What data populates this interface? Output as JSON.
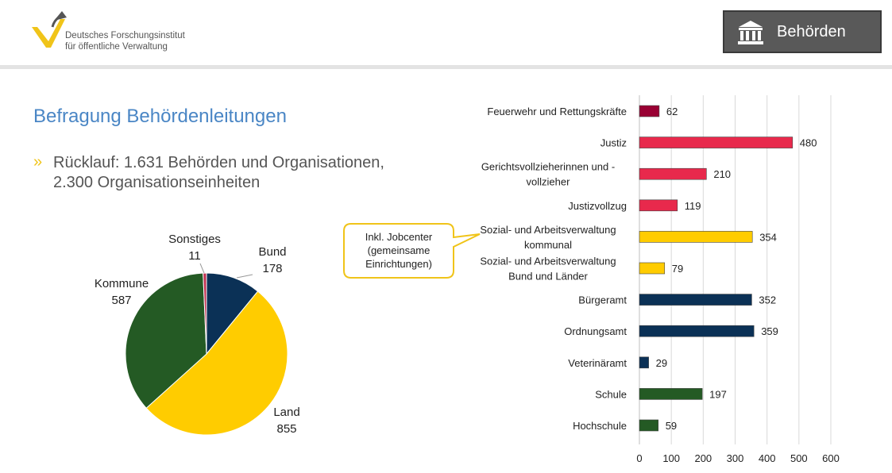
{
  "header": {
    "org_line1": "Deutsches Forschungsinstitut",
    "org_line2": "für öffentliche Verwaltung",
    "badge_label": "Behörden",
    "badge_icon": "government-building-icon"
  },
  "main": {
    "title": "Befragung Behördenleitungen",
    "bullet_line1": "Rücklauf: 1.631 Behörden und Organisationen,",
    "bullet_line2": "2.300 Organisationseinheiten"
  },
  "callout": {
    "line1": "Inkl. Jobcenter",
    "line2": "(gemeinsame",
    "line3": "Einrichtungen)"
  },
  "colors": {
    "bund": "#0b3156",
    "land": "#ffcc00",
    "kommune": "#245a24",
    "sonstiges": "#c03050",
    "feuerwehr": "#990033",
    "justiz": "#e8294c",
    "title": "#4a86c5",
    "accent": "#f0c419"
  },
  "chart_data": [
    {
      "type": "pie",
      "title": "",
      "slices": [
        {
          "label": "Bund",
          "value": 178,
          "color": "#0b3156"
        },
        {
          "label": "Land",
          "value": 855,
          "color": "#ffcc00"
        },
        {
          "label": "Kommune",
          "value": 587,
          "color": "#245a24"
        },
        {
          "label": "Sonstiges",
          "value": 11,
          "color": "#c03050"
        }
      ]
    },
    {
      "type": "bar",
      "orientation": "horizontal",
      "title": "",
      "xlim": [
        0,
        600
      ],
      "xticks": [
        0,
        100,
        200,
        300,
        400,
        500,
        600
      ],
      "grid": "vertical",
      "categories": [
        "Feuerwehr und Rettungskräfte",
        "Justiz",
        "Gerichtsvollzieherinnen und -|vollzieher",
        "Justizvollzug",
        "Sozial- und Arbeitsverwaltung|kommunal",
        "Sozial- und Arbeitsverwaltung|Bund und Länder",
        "Bürgeramt",
        "Ordnungsamt",
        "Veterinäramt",
        "Schule",
        "Hochschule"
      ],
      "values": [
        62,
        480,
        210,
        119,
        354,
        79,
        352,
        359,
        29,
        197,
        59
      ],
      "bar_colors": [
        "#990033",
        "#e8294c",
        "#e8294c",
        "#e8294c",
        "#ffcc00",
        "#ffcc00",
        "#0b3156",
        "#0b3156",
        "#0b3156",
        "#245a24",
        "#245a24"
      ]
    }
  ]
}
